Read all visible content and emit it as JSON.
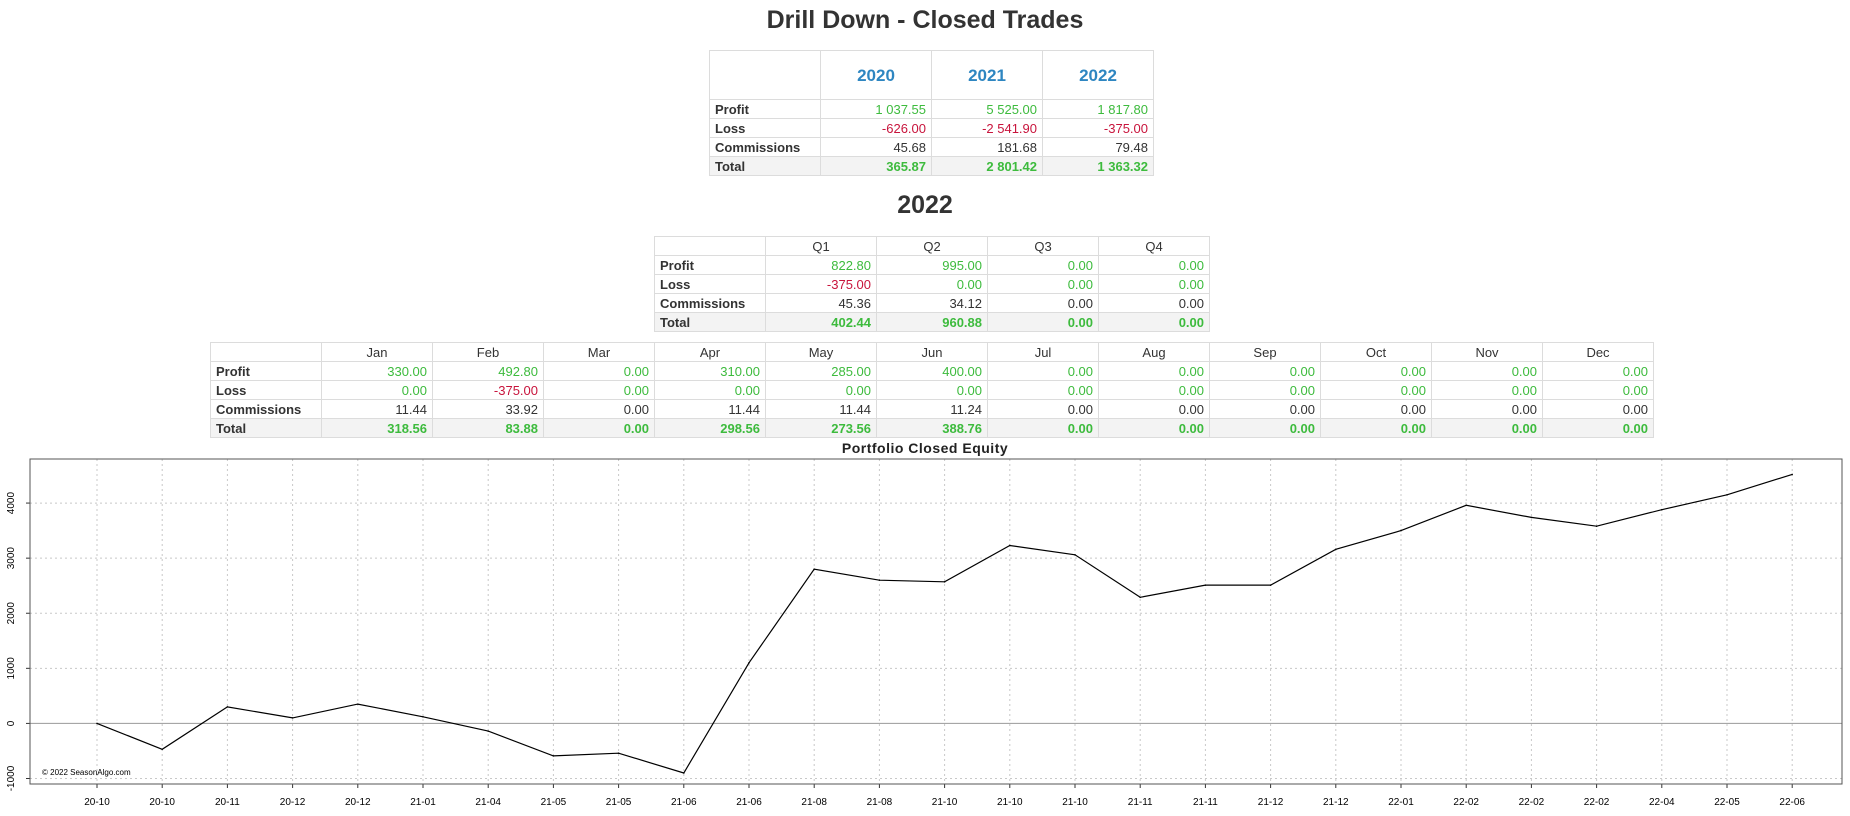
{
  "page": {
    "title": "Drill Down - Closed Trades",
    "year_heading": "2022"
  },
  "years_table": {
    "columns": [
      "2020",
      "2021",
      "2022"
    ],
    "rows": [
      {
        "label": "Profit",
        "kind": "profit",
        "values": [
          "1 037.55",
          "5 525.00",
          "1 817.80"
        ]
      },
      {
        "label": "Loss",
        "kind": "loss",
        "values": [
          "-626.00",
          "-2 541.90",
          "-375.00"
        ]
      },
      {
        "label": "Commissions",
        "kind": "comm",
        "values": [
          "45.68",
          "181.68",
          "79.48"
        ]
      },
      {
        "label": "Total",
        "kind": "total",
        "values": [
          "365.87",
          "2 801.42",
          "1 363.32"
        ]
      }
    ]
  },
  "quarters_table": {
    "columns": [
      "Q1",
      "Q2",
      "Q3",
      "Q4"
    ],
    "rows": [
      {
        "label": "Profit",
        "kind": "profit",
        "values": [
          "822.80",
          "995.00",
          "0.00",
          "0.00"
        ]
      },
      {
        "label": "Loss",
        "kind": "loss",
        "values": [
          "-375.00",
          "0.00",
          "0.00",
          "0.00"
        ]
      },
      {
        "label": "Commissions",
        "kind": "comm",
        "values": [
          "45.36",
          "34.12",
          "0.00",
          "0.00"
        ]
      },
      {
        "label": "Total",
        "kind": "total",
        "values": [
          "402.44",
          "960.88",
          "0.00",
          "0.00"
        ]
      }
    ]
  },
  "months_table": {
    "columns": [
      "Jan",
      "Feb",
      "Mar",
      "Apr",
      "May",
      "Jun",
      "Jul",
      "Aug",
      "Sep",
      "Oct",
      "Nov",
      "Dec"
    ],
    "rows": [
      {
        "label": "Profit",
        "kind": "profit",
        "values": [
          "330.00",
          "492.80",
          "0.00",
          "310.00",
          "285.00",
          "400.00",
          "0.00",
          "0.00",
          "0.00",
          "0.00",
          "0.00",
          "0.00"
        ]
      },
      {
        "label": "Loss",
        "kind": "loss",
        "values": [
          "0.00",
          "-375.00",
          "0.00",
          "0.00",
          "0.00",
          "0.00",
          "0.00",
          "0.00",
          "0.00",
          "0.00",
          "0.00",
          "0.00"
        ]
      },
      {
        "label": "Commissions",
        "kind": "comm",
        "values": [
          "11.44",
          "33.92",
          "0.00",
          "11.44",
          "11.44",
          "11.24",
          "0.00",
          "0.00",
          "0.00",
          "0.00",
          "0.00",
          "0.00"
        ]
      },
      {
        "label": "Total",
        "kind": "total",
        "values": [
          "318.56",
          "83.88",
          "0.00",
          "298.56",
          "273.56",
          "388.76",
          "0.00",
          "0.00",
          "0.00",
          "0.00",
          "0.00",
          "0.00"
        ]
      }
    ]
  },
  "colors": {
    "positive": "#3dbb3d",
    "negative": "#c8143c",
    "year_header": "#2e86c1",
    "line": "#000000",
    "grid": "#c8c8c8",
    "zero_line": "#999999"
  },
  "chart_data": {
    "type": "line",
    "title": "Portfolio Closed Equity",
    "xlabel": "",
    "ylabel": "",
    "x": [
      "20-10",
      "20-10",
      "20-11",
      "20-12",
      "20-12",
      "21-01",
      "21-04",
      "21-05",
      "21-05",
      "21-06",
      "21-06",
      "21-08",
      "21-08",
      "21-10",
      "21-10",
      "21-10",
      "21-11",
      "21-11",
      "21-12",
      "21-12",
      "22-01",
      "22-02",
      "22-02",
      "22-02",
      "22-04",
      "22-05",
      "22-06"
    ],
    "series": [
      {
        "values": [
          0,
          -470,
          300,
          100,
          350,
          120,
          -140,
          -590,
          -540,
          -900,
          1100,
          2800,
          2600,
          2570,
          3230,
          3060,
          2290,
          2510,
          2510,
          3160,
          3500,
          3960,
          3740,
          3580,
          3880,
          4150,
          4520
        ]
      }
    ],
    "y_ticks": [
      -1000,
      0,
      1000,
      2000,
      3000,
      4000
    ],
    "ylim": [
      -1100,
      4800
    ],
    "grid": true,
    "zero_line": true,
    "watermark": "© 2022 SeasonAlgo.com"
  }
}
